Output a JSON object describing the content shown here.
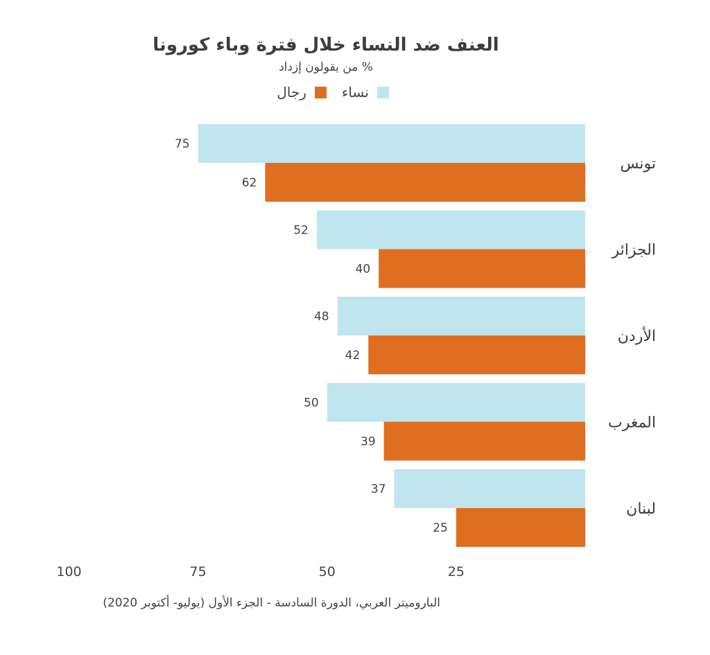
{
  "chart_data": {
    "type": "bar",
    "orientation": "horizontal",
    "title": "العنف ضد النساء خلال فترة وباء كورونا",
    "subtitle": "% من يقولون إزداد",
    "categories": [
      "تونس",
      "الجزائر",
      "الأردن",
      "المغرب",
      "لبنان"
    ],
    "series": [
      {
        "name": "نساء",
        "values": [
          75,
          52,
          48,
          50,
          37
        ],
        "color": "#c0e5ee"
      },
      {
        "name": "رجال",
        "values": [
          62,
          40,
          42,
          39,
          25
        ],
        "color": "#e06e20"
      }
    ],
    "xlim": [
      0,
      100
    ],
    "x_reversed": true,
    "xticks": [
      100,
      75,
      50,
      25
    ],
    "grid": false,
    "legend_position": "top",
    "source": "الباروميتر العربي، الدورة السادسة - الجزء الأول (يوليو- أكتوبر 2020)"
  }
}
